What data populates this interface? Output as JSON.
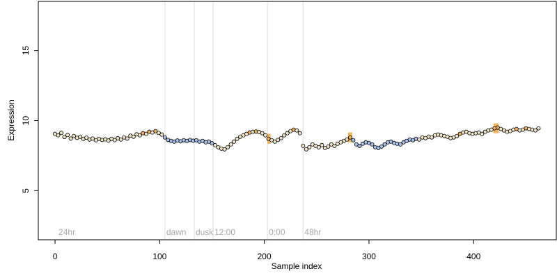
{
  "chart_data": {
    "type": "scatter",
    "xlabel": "Sample index",
    "ylabel": "Expression",
    "xlim": [
      -16,
      479
    ],
    "ylim": [
      1.5,
      18.5
    ],
    "xticks": [
      0,
      100,
      200,
      300,
      400
    ],
    "yticks": [
      5,
      10,
      15
    ],
    "grid": false,
    "colors": {
      "annotation_line": "#dddddd",
      "annotation_text": "#a8a8a8",
      "point_outline": "#000000",
      "point_default": "#f0e4c8",
      "point_night": "#a9c1ea",
      "point_peak": "#f1b25c",
      "band": "#f0a640"
    },
    "annotations": [
      {
        "x": 2,
        "label": "24hr",
        "line": false
      },
      {
        "x": 105,
        "label": "dawn",
        "line": true
      },
      {
        "x": 133,
        "label": "dusk",
        "line": true
      },
      {
        "x": 151,
        "label": "12:00",
        "line": true
      },
      {
        "x": 203,
        "label": "0:00",
        "line": true
      },
      {
        "x": 237,
        "label": "48hr",
        "line": true
      }
    ],
    "band_x": [
      [
        203,
        206
      ],
      [
        280,
        284
      ],
      [
        419,
        424
      ]
    ],
    "series": [
      {
        "values": [
          [
            0,
            9.05
          ],
          [
            3,
            8.95
          ],
          [
            6,
            9.12
          ],
          [
            9,
            8.83
          ],
          [
            12,
            8.97
          ],
          [
            15,
            8.72
          ],
          [
            18,
            8.9
          ],
          [
            21,
            8.77
          ],
          [
            24,
            8.85
          ],
          [
            27,
            8.7
          ],
          [
            30,
            8.78
          ],
          [
            33,
            8.65
          ],
          [
            36,
            8.72
          ],
          [
            39,
            8.6
          ],
          [
            42,
            8.7
          ],
          [
            45,
            8.62
          ],
          [
            48,
            8.66
          ],
          [
            51,
            8.58
          ],
          [
            54,
            8.7
          ],
          [
            57,
            8.61
          ],
          [
            60,
            8.74
          ],
          [
            63,
            8.65
          ],
          [
            66,
            8.8
          ],
          [
            69,
            8.72
          ],
          [
            72,
            8.92
          ],
          [
            75,
            8.85
          ],
          [
            78,
            9.02
          ],
          [
            81,
            8.95
          ],
          [
            84,
            9.1
          ],
          [
            87,
            9.05
          ],
          [
            90,
            9.2
          ],
          [
            93,
            9.15
          ],
          [
            96,
            9.25
          ],
          [
            99,
            9.12
          ],
          [
            102,
            9.0
          ],
          [
            105,
            8.8
          ],
          [
            108,
            8.62
          ],
          [
            111,
            8.55
          ],
          [
            114,
            8.5
          ],
          [
            117,
            8.58
          ],
          [
            120,
            8.52
          ],
          [
            123,
            8.6
          ],
          [
            126,
            8.55
          ],
          [
            129,
            8.62
          ],
          [
            132,
            8.56
          ],
          [
            135,
            8.6
          ],
          [
            138,
            8.5
          ],
          [
            141,
            8.55
          ],
          [
            144,
            8.45
          ],
          [
            147,
            8.5
          ],
          [
            150,
            8.38
          ],
          [
            153,
            8.25
          ],
          [
            156,
            8.1
          ],
          [
            159,
            8.0
          ],
          [
            162,
            7.95
          ],
          [
            165,
            8.1
          ],
          [
            168,
            8.3
          ],
          [
            171,
            8.5
          ],
          [
            174,
            8.7
          ],
          [
            177,
            8.85
          ],
          [
            180,
            8.95
          ],
          [
            183,
            9.05
          ],
          [
            186,
            9.15
          ],
          [
            189,
            9.2
          ],
          [
            192,
            9.22
          ],
          [
            195,
            9.18
          ],
          [
            198,
            9.1
          ],
          [
            201,
            8.95
          ],
          [
            204,
            8.7
          ],
          [
            207,
            8.6
          ],
          [
            210,
            8.5
          ],
          [
            213,
            8.62
          ],
          [
            216,
            8.75
          ],
          [
            219,
            8.95
          ],
          [
            222,
            9.1
          ],
          [
            225,
            9.25
          ],
          [
            228,
            9.35
          ],
          [
            231,
            9.3
          ],
          [
            234,
            9.1
          ],
          [
            237,
            8.2
          ],
          [
            240,
            7.95
          ],
          [
            243,
            8.1
          ],
          [
            246,
            8.3
          ],
          [
            249,
            8.2
          ],
          [
            252,
            8.1
          ],
          [
            255,
            8.25
          ],
          [
            258,
            8.05
          ],
          [
            261,
            8.15
          ],
          [
            264,
            8.3
          ],
          [
            267,
            8.2
          ],
          [
            270,
            8.35
          ],
          [
            273,
            8.45
          ],
          [
            276,
            8.55
          ],
          [
            279,
            8.65
          ],
          [
            282,
            8.8
          ],
          [
            285,
            8.6
          ],
          [
            288,
            8.3
          ],
          [
            291,
            8.2
          ],
          [
            294,
            8.35
          ],
          [
            297,
            8.45
          ],
          [
            300,
            8.4
          ],
          [
            303,
            8.3
          ],
          [
            306,
            8.1
          ],
          [
            309,
            8.05
          ],
          [
            312,
            8.15
          ],
          [
            315,
            8.3
          ],
          [
            318,
            8.45
          ],
          [
            321,
            8.5
          ],
          [
            324,
            8.4
          ],
          [
            327,
            8.35
          ],
          [
            330,
            8.3
          ],
          [
            333,
            8.45
          ],
          [
            336,
            8.55
          ],
          [
            339,
            8.65
          ],
          [
            342,
            8.6
          ],
          [
            345,
            8.7
          ],
          [
            348,
            8.65
          ],
          [
            351,
            8.8
          ],
          [
            354,
            8.75
          ],
          [
            357,
            8.85
          ],
          [
            360,
            8.8
          ],
          [
            363,
            8.95
          ],
          [
            366,
            9.0
          ],
          [
            369,
            8.95
          ],
          [
            372,
            8.9
          ],
          [
            375,
            8.85
          ],
          [
            378,
            8.75
          ],
          [
            381,
            8.8
          ],
          [
            384,
            8.9
          ],
          [
            387,
            9.05
          ],
          [
            390,
            9.15
          ],
          [
            393,
            9.2
          ],
          [
            396,
            9.1
          ],
          [
            399,
            9.05
          ],
          [
            402,
            9.1
          ],
          [
            405,
            9.15
          ],
          [
            408,
            9.05
          ],
          [
            411,
            9.2
          ],
          [
            414,
            9.3
          ],
          [
            417,
            9.35
          ],
          [
            420,
            9.45
          ],
          [
            423,
            9.5
          ],
          [
            426,
            9.4
          ],
          [
            429,
            9.3
          ],
          [
            432,
            9.2
          ],
          [
            435,
            9.25
          ],
          [
            438,
            9.35
          ],
          [
            441,
            9.4
          ],
          [
            444,
            9.3
          ],
          [
            447,
            9.35
          ],
          [
            450,
            9.45
          ],
          [
            453,
            9.4
          ],
          [
            456,
            9.35
          ],
          [
            459,
            9.3
          ],
          [
            462,
            9.45
          ]
        ]
      }
    ]
  }
}
